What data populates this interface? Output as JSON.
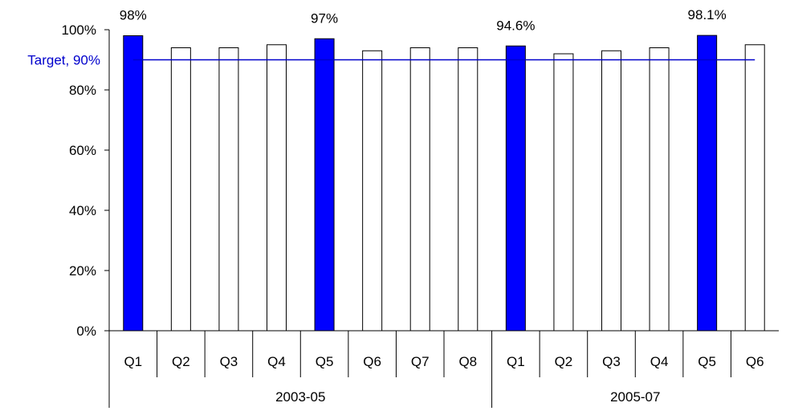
{
  "chart_data": {
    "type": "bar",
    "categories": [
      "Q1",
      "Q2",
      "Q3",
      "Q4",
      "Q5",
      "Q6",
      "Q7",
      "Q8",
      "Q1",
      "Q2",
      "Q3",
      "Q4",
      "Q5",
      "Q6"
    ],
    "groups": [
      {
        "label": "2003-05",
        "count": 8
      },
      {
        "label": "2005-07",
        "count": 6
      }
    ],
    "values": [
      98,
      94,
      94,
      95,
      97,
      93,
      94,
      94,
      94.6,
      92,
      93,
      94,
      98.1,
      95
    ],
    "highlighted": [
      true,
      false,
      false,
      false,
      true,
      false,
      false,
      false,
      true,
      false,
      false,
      false,
      true,
      false
    ],
    "data_labels": [
      "98%",
      "",
      "",
      "",
      "97%",
      "",
      "",
      "",
      "94.6%",
      "",
      "",
      "",
      "98.1%",
      ""
    ],
    "ylim": [
      0,
      100
    ],
    "yticks": [
      0,
      20,
      40,
      60,
      80,
      100
    ],
    "ytick_labels": [
      "0%",
      "20%",
      "40%",
      "60%",
      "80%",
      "100%"
    ],
    "target": {
      "value": 90,
      "label": "Target, 90%",
      "color": "#0000cc"
    },
    "colors": {
      "highlight": "#0000ff",
      "normal": "#ffffff",
      "outline": "#000000"
    },
    "title": "",
    "xlabel": "",
    "ylabel": ""
  }
}
